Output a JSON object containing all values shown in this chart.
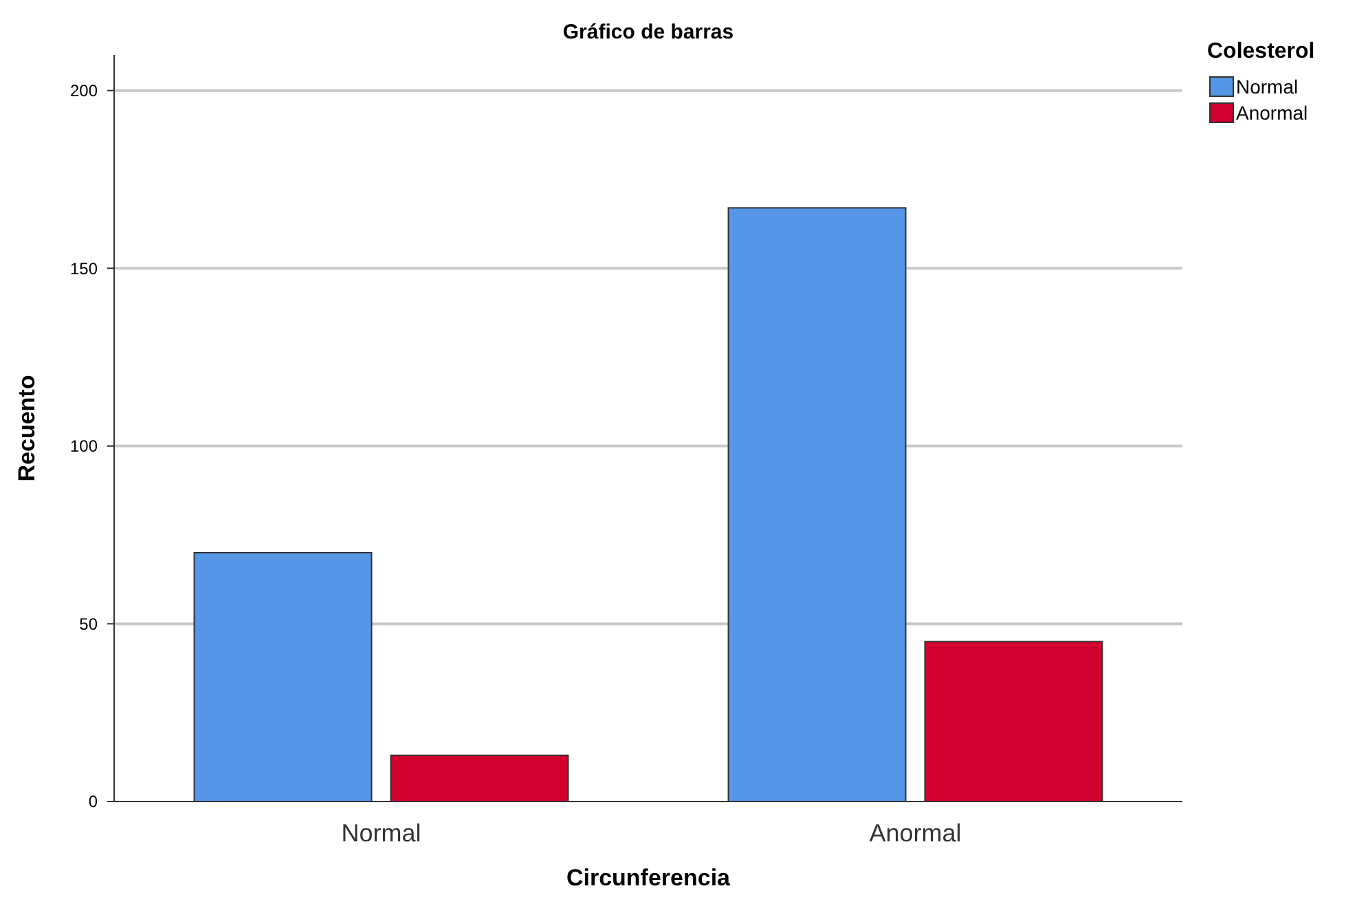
{
  "chart_data": {
    "type": "bar",
    "title": "Gráfico de barras",
    "xlabel": "Circunferencia",
    "ylabel": "Recuento",
    "legend_title": "Colesterol",
    "categories": [
      "Normal",
      "Anormal"
    ],
    "series": [
      {
        "name": "Normal",
        "color": "#5596e6",
        "values": [
          70,
          167
        ]
      },
      {
        "name": "Anormal",
        "color": "#d1002f",
        "values": [
          13,
          45
        ]
      }
    ],
    "ylim": [
      0,
      210
    ],
    "yticks": [
      0,
      50,
      100,
      150,
      200
    ],
    "grid": "y",
    "legend": "top right"
  }
}
